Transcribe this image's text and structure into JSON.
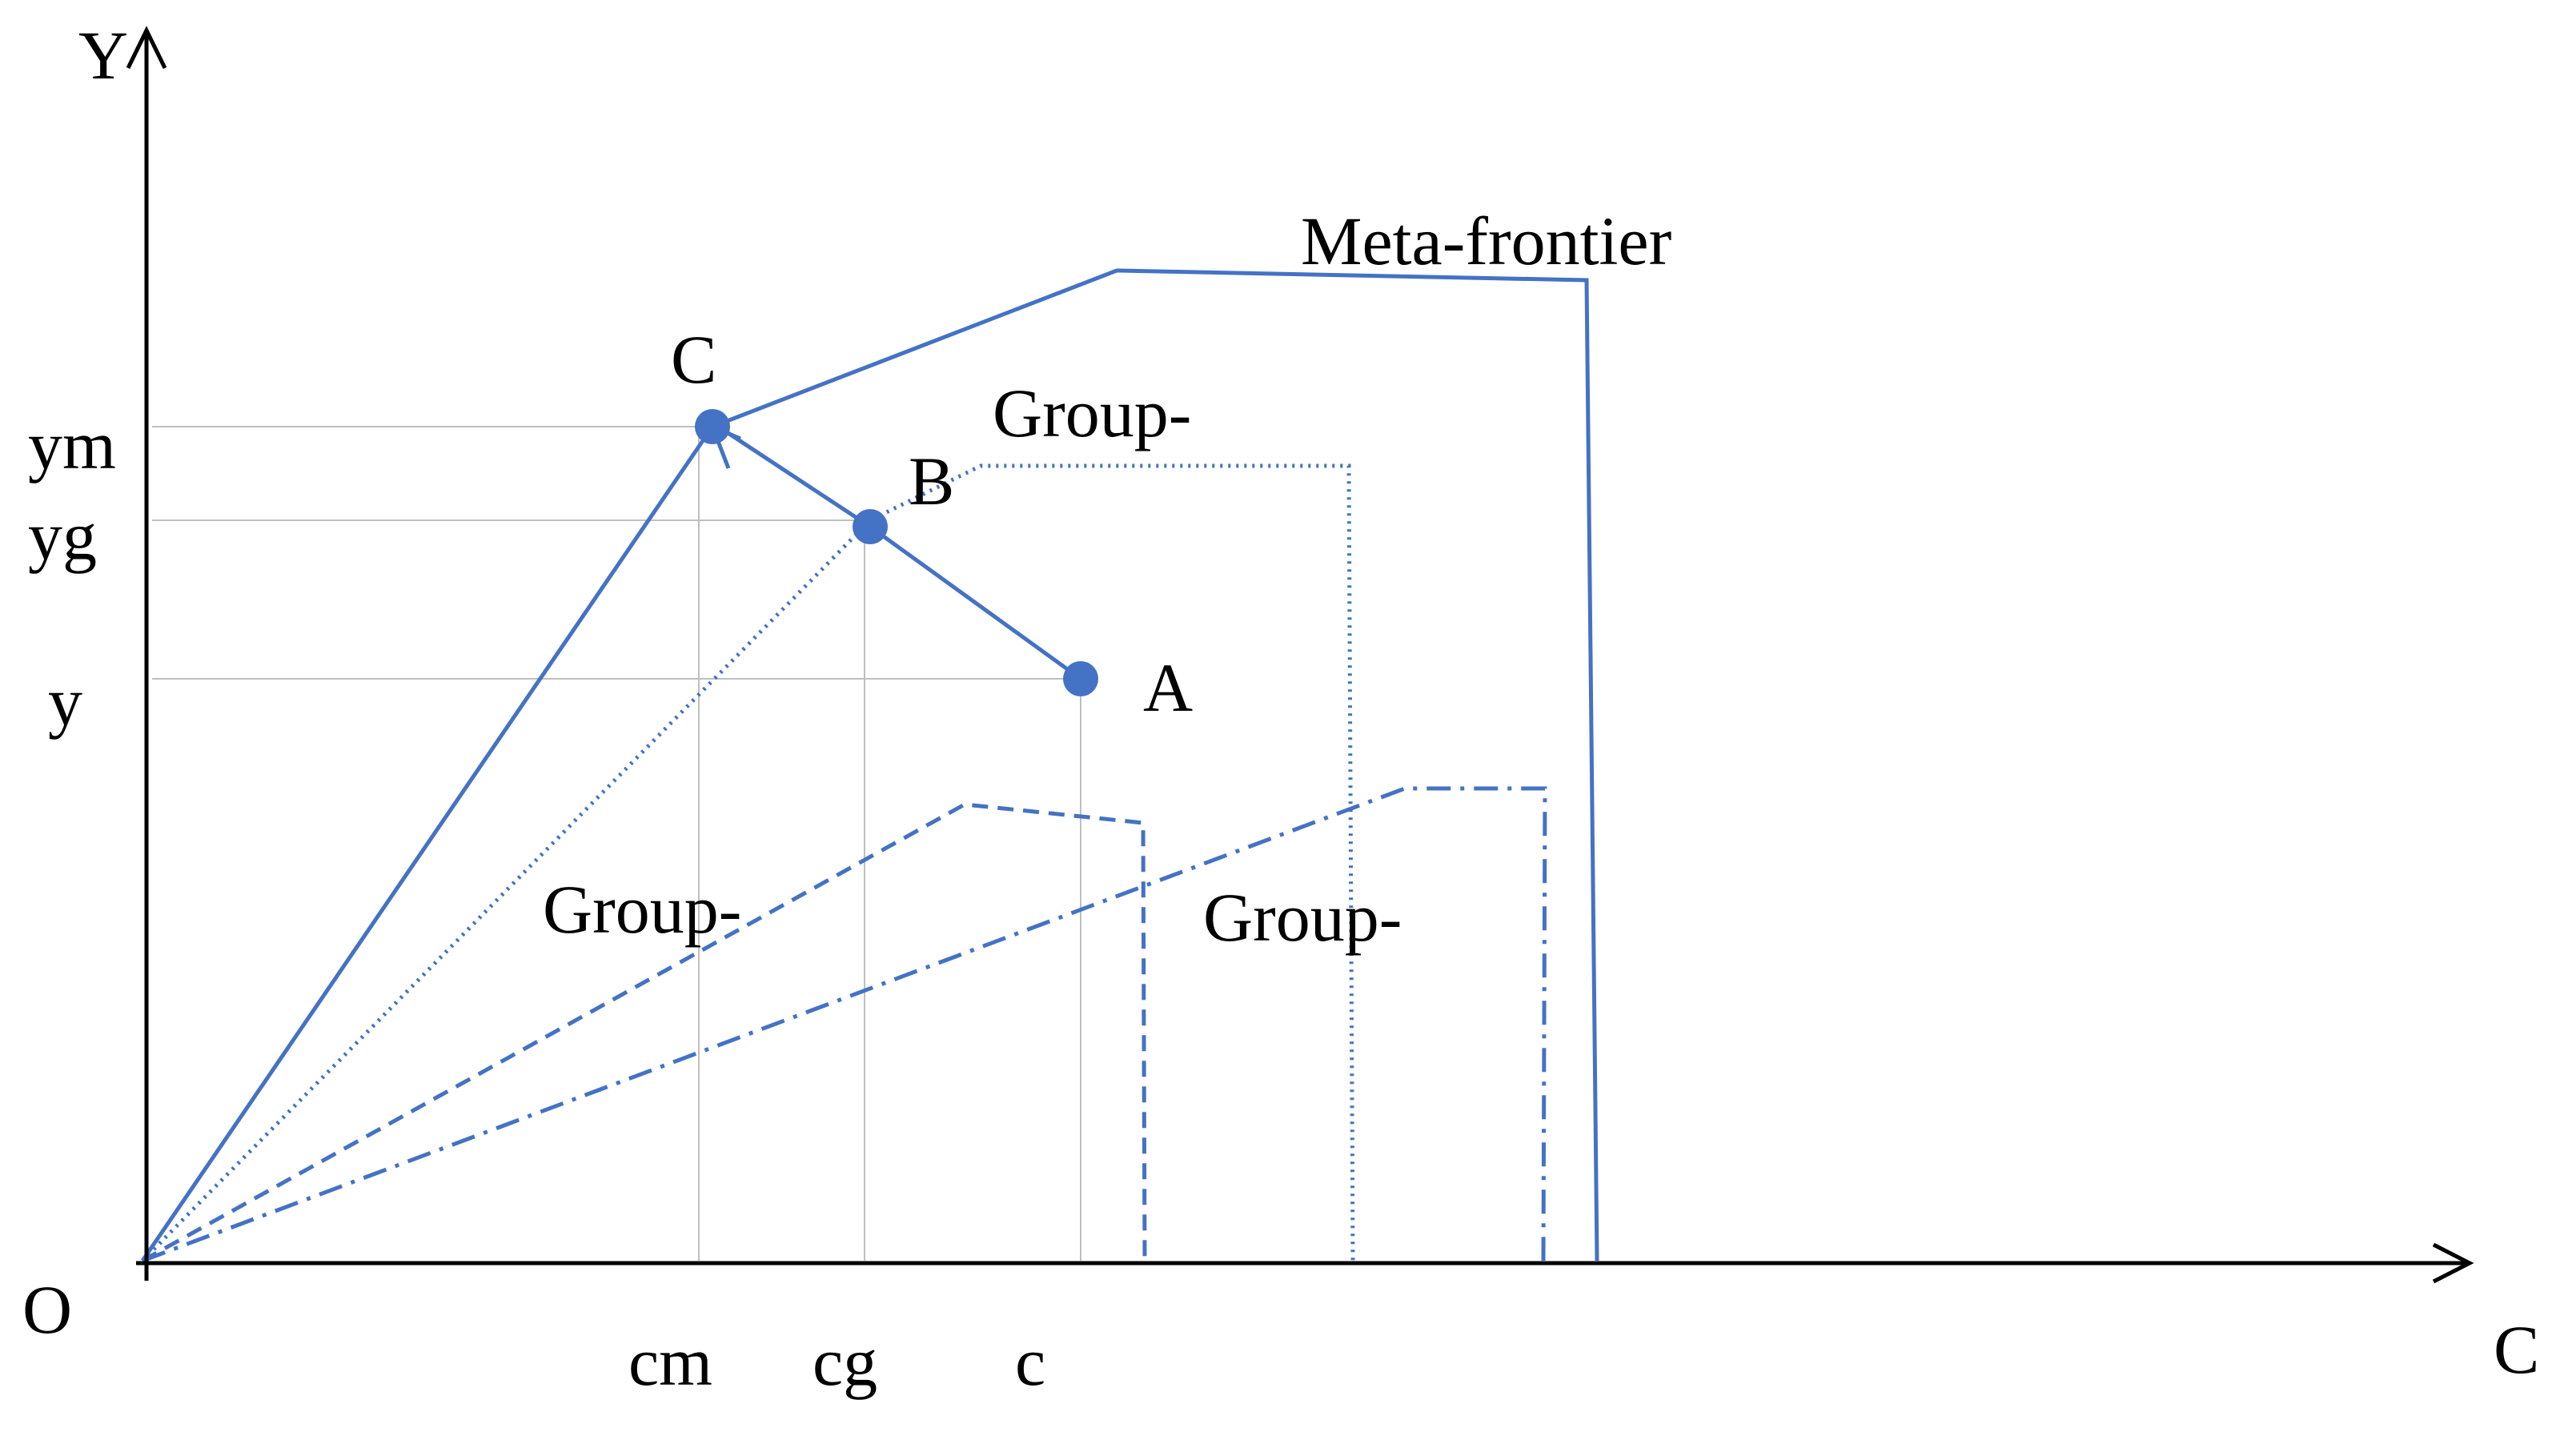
{
  "axes": {
    "y_label": "Y",
    "x_label": "C",
    "origin_label": "O"
  },
  "y_ticks": {
    "ym": "ym",
    "yg": "yg",
    "y": "y"
  },
  "x_ticks": {
    "cm": "cm",
    "cg": "cg",
    "c": "c"
  },
  "points": {
    "A": "A",
    "B": "B",
    "C": "C"
  },
  "frontier_labels": {
    "meta": "Meta-frontier",
    "group_top": "Group-",
    "group_left": "Group-",
    "group_right": "Group-"
  },
  "colors": {
    "frontier": "#4472C4",
    "points": "#4472C4",
    "guides": "#bfbfbf",
    "axes": "#000000"
  }
}
